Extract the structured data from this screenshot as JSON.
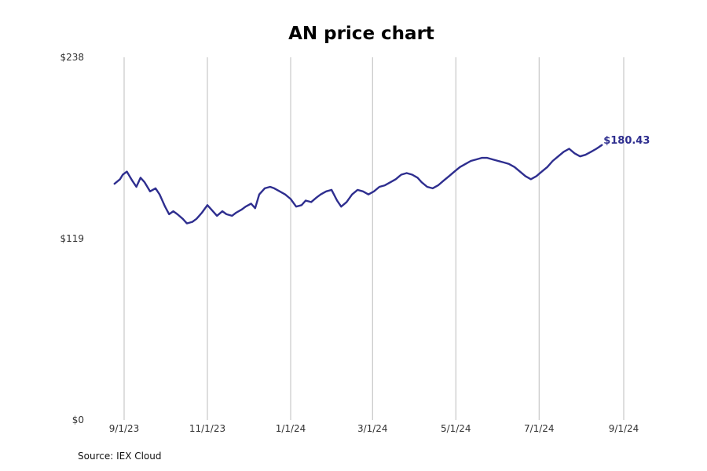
{
  "chart_data": {
    "type": "line",
    "title": "AN price chart",
    "xlabel": "",
    "ylabel": "",
    "ylim": [
      0,
      238
    ],
    "yticks": [
      0,
      119,
      238
    ],
    "ytick_labels": [
      "$0",
      "$119",
      "$238"
    ],
    "xlim": [
      "2023-08-25",
      "2024-09-01"
    ],
    "xticks": [
      "2023-09-01",
      "2023-11-01",
      "2024-01-01",
      "2024-03-01",
      "2024-05-01",
      "2024-07-01",
      "2024-09-01"
    ],
    "xtick_labels": [
      "9/1/23",
      "11/1/23",
      "1/1/24",
      "3/1/24",
      "5/1/24",
      "7/1/24",
      "9/1/24"
    ],
    "grid": "vertical",
    "series": [
      {
        "color": "#2e2e8f",
        "last_value_label": "$180.43",
        "points": [
          [
            "2023-08-25",
            155.0
          ],
          [
            "2023-08-29",
            158.0
          ],
          [
            "2023-08-31",
            161.0
          ],
          [
            "2023-09-03",
            163.0
          ],
          [
            "2023-09-07",
            157.0
          ],
          [
            "2023-09-10",
            153.0
          ],
          [
            "2023-09-13",
            159.0
          ],
          [
            "2023-09-16",
            156.0
          ],
          [
            "2023-09-20",
            150.0
          ],
          [
            "2023-09-24",
            152.0
          ],
          [
            "2023-09-27",
            148.0
          ],
          [
            "2023-10-01",
            140.0
          ],
          [
            "2023-10-04",
            135.0
          ],
          [
            "2023-10-07",
            137.0
          ],
          [
            "2023-10-10",
            135.0
          ],
          [
            "2023-10-14",
            132.0
          ],
          [
            "2023-10-17",
            129.0
          ],
          [
            "2023-10-21",
            130.0
          ],
          [
            "2023-10-24",
            132.0
          ],
          [
            "2023-10-28",
            136.0
          ],
          [
            "2023-11-01",
            141.0
          ],
          [
            "2023-11-04",
            138.0
          ],
          [
            "2023-11-08",
            134.0
          ],
          [
            "2023-11-12",
            137.0
          ],
          [
            "2023-11-15",
            135.0
          ],
          [
            "2023-11-19",
            134.0
          ],
          [
            "2023-11-22",
            136.0
          ],
          [
            "2023-11-26",
            138.0
          ],
          [
            "2023-11-29",
            140.0
          ],
          [
            "2023-12-03",
            142.0
          ],
          [
            "2023-12-06",
            139.0
          ],
          [
            "2023-12-09",
            148.0
          ],
          [
            "2023-12-13",
            152.0
          ],
          [
            "2023-12-17",
            153.0
          ],
          [
            "2023-12-20",
            152.0
          ],
          [
            "2023-12-24",
            150.0
          ],
          [
            "2023-12-28",
            148.0
          ],
          [
            "2024-01-01",
            145.0
          ],
          [
            "2024-01-05",
            140.0
          ],
          [
            "2024-01-09",
            141.0
          ],
          [
            "2024-01-12",
            144.0
          ],
          [
            "2024-01-16",
            143.0
          ],
          [
            "2024-01-20",
            146.0
          ],
          [
            "2024-01-23",
            148.0
          ],
          [
            "2024-01-27",
            150.0
          ],
          [
            "2024-01-31",
            151.0
          ],
          [
            "2024-02-04",
            144.0
          ],
          [
            "2024-02-07",
            140.0
          ],
          [
            "2024-02-11",
            143.0
          ],
          [
            "2024-02-15",
            148.0
          ],
          [
            "2024-02-19",
            151.0
          ],
          [
            "2024-02-23",
            150.0
          ],
          [
            "2024-02-27",
            148.0
          ],
          [
            "2024-03-02",
            150.0
          ],
          [
            "2024-03-06",
            153.0
          ],
          [
            "2024-03-10",
            154.0
          ],
          [
            "2024-03-14",
            156.0
          ],
          [
            "2024-03-18",
            158.0
          ],
          [
            "2024-03-22",
            161.0
          ],
          [
            "2024-03-26",
            162.0
          ],
          [
            "2024-03-30",
            161.0
          ],
          [
            "2024-04-03",
            159.0
          ],
          [
            "2024-04-06",
            156.0
          ],
          [
            "2024-04-10",
            153.0
          ],
          [
            "2024-04-14",
            152.0
          ],
          [
            "2024-04-18",
            154.0
          ],
          [
            "2024-04-22",
            157.0
          ],
          [
            "2024-04-26",
            160.0
          ],
          [
            "2024-04-30",
            163.0
          ],
          [
            "2024-05-04",
            166.0
          ],
          [
            "2024-05-08",
            168.0
          ],
          [
            "2024-05-12",
            170.0
          ],
          [
            "2024-05-16",
            171.0
          ],
          [
            "2024-05-20",
            172.0
          ],
          [
            "2024-05-24",
            172.0
          ],
          [
            "2024-05-28",
            171.0
          ],
          [
            "2024-06-01",
            170.0
          ],
          [
            "2024-06-05",
            169.0
          ],
          [
            "2024-06-09",
            168.0
          ],
          [
            "2024-06-13",
            166.0
          ],
          [
            "2024-06-17",
            163.0
          ],
          [
            "2024-06-21",
            160.0
          ],
          [
            "2024-06-25",
            158.0
          ],
          [
            "2024-06-29",
            160.0
          ],
          [
            "2024-07-03",
            163.0
          ],
          [
            "2024-07-07",
            166.0
          ],
          [
            "2024-07-11",
            170.0
          ],
          [
            "2024-07-15",
            173.0
          ],
          [
            "2024-07-19",
            176.0
          ],
          [
            "2024-07-23",
            178.0
          ],
          [
            "2024-07-27",
            175.0
          ],
          [
            "2024-07-31",
            173.0
          ],
          [
            "2024-08-04",
            174.0
          ],
          [
            "2024-08-08",
            176.0
          ],
          [
            "2024-08-12",
            178.0
          ],
          [
            "2024-08-16",
            180.43
          ]
        ]
      }
    ],
    "source": "Source: IEX Cloud"
  }
}
